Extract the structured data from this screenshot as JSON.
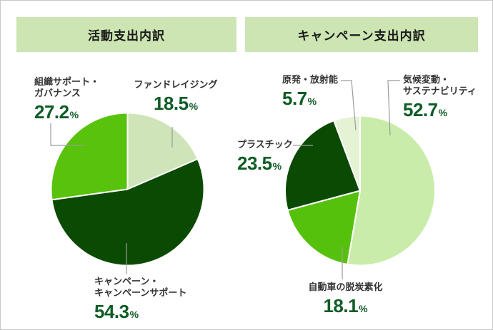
{
  "page": {
    "background": "#ffffff",
    "border_color": "#c9c9c9",
    "banner_color": "#cce5b2",
    "number_color": "#0e5c26",
    "label_color": "#333333",
    "connector_color": "#9b9b9b"
  },
  "chart_data": [
    {
      "type": "pie",
      "title": "活動支出内訳",
      "unit": "%",
      "start_angle": "12-oclock",
      "direction": "clockwise",
      "legend_position": "callout-labels",
      "slices": [
        {
          "name": "fundraising",
          "label": "ファンドレイジング",
          "label_line1": "ファンドレイジング",
          "label_line2": "",
          "value": 18.5,
          "unit": "%",
          "color": "#cfe4b8"
        },
        {
          "name": "campaign-and-campaign-support",
          "label": "キャンペーン・キャンペーンサポート",
          "label_line1": "キャンペーン・",
          "label_line2": "キャンペーンサポート",
          "value": 54.3,
          "unit": "%",
          "color": "#0b4a03"
        },
        {
          "name": "organization-support-governance",
          "label": "組織サポート・ガバナンス",
          "label_line1": "組織サポート・",
          "label_line2": "ガバナンス",
          "value": 27.2,
          "unit": "%",
          "color": "#58c20d"
        }
      ]
    },
    {
      "type": "pie",
      "title": "キャンペーン支出内訳",
      "unit": "%",
      "start_angle": "12-oclock",
      "direction": "clockwise",
      "legend_position": "callout-labels",
      "slices": [
        {
          "name": "climate-change-sustainability",
          "label": "気候変動・サステナビリティ",
          "label_line1": "気候変動・",
          "label_line2": "サステナビリティ",
          "value": 52.7,
          "unit": "%",
          "color": "#c9ecaa"
        },
        {
          "name": "auto-decarbonization",
          "label": "自動車の脱炭素化",
          "label_line1": "自動車の脱炭素化",
          "label_line2": "",
          "value": 18.1,
          "unit": "%",
          "color": "#56c10d"
        },
        {
          "name": "plastic",
          "label": "プラスチック",
          "label_line1": "プラスチック",
          "label_line2": "",
          "value": 23.5,
          "unit": "%",
          "color": "#0b4a03"
        },
        {
          "name": "nuclear-radiation",
          "label": "原発・放射能",
          "label_line1": "原発・放射能",
          "label_line2": "",
          "value": 5.7,
          "unit": "%",
          "color": "#e4f3d4"
        }
      ]
    }
  ]
}
